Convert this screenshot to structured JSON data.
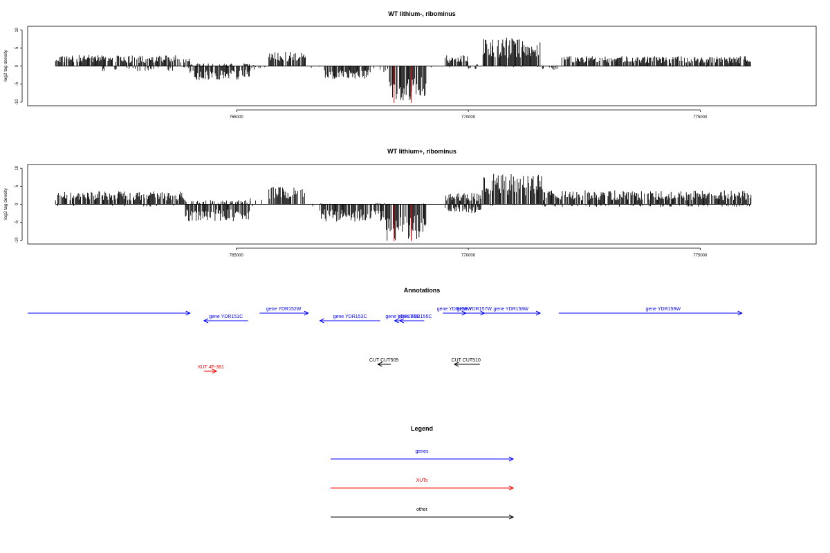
{
  "chart_data": [
    {
      "type": "bar",
      "title": "WT lithium-, ribominus",
      "xlabel": "",
      "ylabel": "log2 tag density",
      "xlim": [
        760500,
        777500
      ],
      "ylim": [
        -11,
        11
      ],
      "yticks": [
        10,
        5,
        0,
        -5,
        -10
      ],
      "xticks": [
        765000,
        770000,
        775000
      ],
      "xtick_labels": [
        "765000",
        "770000",
        "775000"
      ],
      "grid": false,
      "highlight_color": "#ff0000",
      "highlight_x": [
        768400,
        768770
      ],
      "profile": [
        {
          "start": 761100,
          "end": 762000,
          "pos": 2.6,
          "neg": 0
        },
        {
          "start": 762000,
          "end": 763700,
          "pos": 2.5,
          "neg": -1.2
        },
        {
          "start": 763700,
          "end": 764000,
          "pos": 1.8,
          "neg": -0.6
        },
        {
          "start": 764000,
          "end": 765300,
          "pos": 0.6,
          "neg": -3.2
        },
        {
          "start": 765300,
          "end": 765700,
          "pos": 0.4,
          "neg": -0.8
        },
        {
          "start": 765700,
          "end": 766500,
          "pos": 3.3,
          "neg": -0.2
        },
        {
          "start": 766500,
          "end": 766900,
          "pos": 0.1,
          "neg": -0.4
        },
        {
          "start": 766900,
          "end": 767900,
          "pos": 0.2,
          "neg": -3.0
        },
        {
          "start": 767900,
          "end": 768300,
          "pos": 0.2,
          "neg": -1.5
        },
        {
          "start": 768300,
          "end": 769100,
          "pos": 0,
          "neg": -8.2
        },
        {
          "start": 769100,
          "end": 769500,
          "pos": 0.1,
          "neg": -0.3
        },
        {
          "start": 769500,
          "end": 770000,
          "pos": 2.5,
          "neg": -0.3
        },
        {
          "start": 770000,
          "end": 770300,
          "pos": 0.4,
          "neg": -0.8
        },
        {
          "start": 770300,
          "end": 771600,
          "pos": 6.5,
          "neg": -0.3
        },
        {
          "start": 771600,
          "end": 772000,
          "pos": 0.3,
          "neg": -1.0
        },
        {
          "start": 772000,
          "end": 776100,
          "pos": 2.3,
          "neg": -0.2
        }
      ]
    },
    {
      "type": "bar",
      "title": "WT lithium+, ribominus",
      "xlabel": "",
      "ylabel": "log2 tag density",
      "xlim": [
        760500,
        777500
      ],
      "ylim": [
        -11,
        11
      ],
      "yticks": [
        10,
        5,
        0,
        -5,
        -10
      ],
      "xticks": [
        765000,
        770000,
        775000
      ],
      "xtick_labels": [
        "765000",
        "770000",
        "775000"
      ],
      "grid": false,
      "highlight_color": "#ff0000",
      "highlight_x": [
        768400,
        768770
      ],
      "profile": [
        {
          "start": 761100,
          "end": 763900,
          "pos": 3.0,
          "neg": -0.5
        },
        {
          "start": 763900,
          "end": 765300,
          "pos": 1.0,
          "neg": -4.0
        },
        {
          "start": 765300,
          "end": 765700,
          "pos": 1.5,
          "neg": -0.5
        },
        {
          "start": 765700,
          "end": 766500,
          "pos": 4.0,
          "neg": -0.3
        },
        {
          "start": 766500,
          "end": 766800,
          "pos": 0.2,
          "neg": -0.5
        },
        {
          "start": 766800,
          "end": 768200,
          "pos": 0.3,
          "neg": -4.0
        },
        {
          "start": 768200,
          "end": 769100,
          "pos": 0.2,
          "neg": -8.5
        },
        {
          "start": 769100,
          "end": 769500,
          "pos": 0.1,
          "neg": -0.3
        },
        {
          "start": 769500,
          "end": 770300,
          "pos": 2.6,
          "neg": -2.0
        },
        {
          "start": 770300,
          "end": 771600,
          "pos": 7.0,
          "neg": -0.4
        },
        {
          "start": 771600,
          "end": 776100,
          "pos": 3.2,
          "neg": -0.6
        }
      ]
    }
  ],
  "annotations": {
    "title": "Annotations",
    "xlim": [
      760500,
      777500
    ],
    "features": [
      {
        "label": "",
        "start": 760500,
        "end": 764000,
        "strand": "+",
        "row": 0,
        "color": "#0000ff",
        "label_x": 762250
      },
      {
        "label": "gene YDR151C",
        "start": 764300,
        "end": 765250,
        "strand": "-",
        "row": 1,
        "color": "#0000ff",
        "label_x": 764775
      },
      {
        "label": "gene YDR152W",
        "start": 765500,
        "end": 766550,
        "strand": "+",
        "row": 0,
        "color": "#0000ff",
        "label_x": 766020
      },
      {
        "label": "gene YDR153C",
        "start": 766800,
        "end": 768100,
        "strand": "-",
        "row": 1,
        "color": "#0000ff",
        "label_x": 767450
      },
      {
        "label": "gene YDR154C",
        "start": 768410,
        "end": 768810,
        "strand": "-",
        "row": 1,
        "color": "#0000ff",
        "label_x": 768580
      },
      {
        "label": "gene YDR155C",
        "start": 768520,
        "end": 769050,
        "strand": "-",
        "row": 1,
        "color": "#0000ff",
        "label_x": 768850
      },
      {
        "label": "gene YDR156W",
        "start": 769450,
        "end": 769950,
        "strand": "+",
        "row": 0,
        "color": "#0000ff",
        "label_x": 769700
      },
      {
        "label": "gene YDR157W",
        "start": 769900,
        "end": 770350,
        "strand": "+",
        "row": 0,
        "color": "#0000ff",
        "label_x": 770130
      },
      {
        "label": "gene YDR158W",
        "start": 770350,
        "end": 771550,
        "strand": "+",
        "row": 0,
        "color": "#0000ff",
        "label_x": 770920
      },
      {
        "label": "gene YDR159W",
        "start": 771950,
        "end": 775900,
        "strand": "+",
        "row": 0,
        "color": "#0000ff",
        "label_x": 774200
      },
      {
        "label": "CUT CUT509",
        "start": 768050,
        "end": 768330,
        "strand": "-",
        "row": 3,
        "color": "#000000",
        "label_x": 768180
      },
      {
        "label": "CUT CUT510",
        "start": 769700,
        "end": 770250,
        "strand": "-",
        "row": 3,
        "color": "#000000",
        "label_x": 769950
      },
      {
        "label": "XUT 4F-361",
        "start": 764300,
        "end": 764570,
        "strand": "+",
        "row": 4,
        "color": "#ff0000",
        "label_x": 764450
      }
    ]
  },
  "legend": {
    "title": "Legend",
    "items": [
      {
        "label": "genes",
        "color": "#0000ff"
      },
      {
        "label": "XUTs",
        "color": "#ff0000"
      },
      {
        "label": "other",
        "color": "#000000"
      }
    ]
  }
}
